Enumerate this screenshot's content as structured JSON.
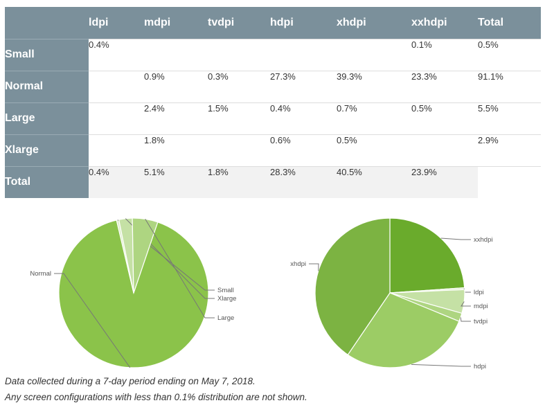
{
  "table": {
    "columns": [
      "",
      "ldpi",
      "mdpi",
      "tvdpi",
      "hdpi",
      "xhdpi",
      "xxhdpi",
      "Total"
    ],
    "rows": [
      {
        "label": "Small",
        "cells": [
          "0.4%",
          "",
          "",
          "",
          "",
          "0.1%",
          "0.5%"
        ]
      },
      {
        "label": "Normal",
        "cells": [
          "",
          "0.9%",
          "0.3%",
          "27.3%",
          "39.3%",
          "23.3%",
          "91.1%"
        ]
      },
      {
        "label": "Large",
        "cells": [
          "",
          "2.4%",
          "1.5%",
          "0.4%",
          "0.7%",
          "0.5%",
          "5.5%"
        ]
      },
      {
        "label": "Xlarge",
        "cells": [
          "",
          "1.8%",
          "",
          "0.6%",
          "0.5%",
          "",
          "2.9%"
        ]
      },
      {
        "label": "Total",
        "cells": [
          "0.4%",
          "5.1%",
          "1.8%",
          "28.3%",
          "40.5%",
          "23.9%",
          ""
        ]
      }
    ]
  },
  "chart_data": [
    {
      "type": "pie",
      "title": "",
      "slices": [
        {
          "label": "Normal",
          "value": 91.1,
          "color": "#8bc34a"
        },
        {
          "label": "Small",
          "value": 0.5,
          "color": "#dcedc8"
        },
        {
          "label": "Xlarge",
          "value": 2.9,
          "color": "#c5e1a5"
        },
        {
          "label": "Large",
          "value": 5.5,
          "color": "#aed581"
        }
      ]
    },
    {
      "type": "pie",
      "title": "",
      "slices": [
        {
          "label": "xxhdpi",
          "value": 23.9,
          "color": "#6aab2c"
        },
        {
          "label": "ldpi",
          "value": 0.4,
          "color": "#dcedc8"
        },
        {
          "label": "mdpi",
          "value": 5.1,
          "color": "#c5e1a5"
        },
        {
          "label": "tvdpi",
          "value": 1.8,
          "color": "#aed581"
        },
        {
          "label": "hdpi",
          "value": 28.3,
          "color": "#9ccc65"
        },
        {
          "label": "xhdpi",
          "value": 40.5,
          "color": "#7cb342"
        }
      ]
    }
  ],
  "footnotes": [
    "Data collected during a 7-day period ending on May 7, 2018.",
    "Any screen configurations with less than 0.1% distribution are not shown."
  ]
}
